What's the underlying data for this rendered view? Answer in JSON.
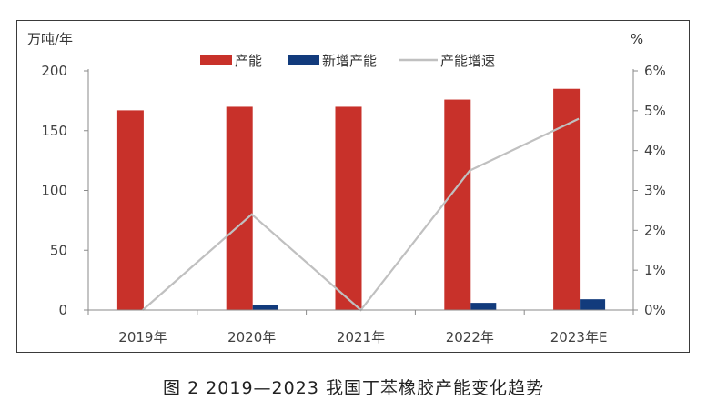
{
  "chart_data": {
    "type": "bar",
    "caption": "图 2  2019—2023 我国丁苯橡胶产能变化趋势",
    "left_unit": "万吨/年",
    "right_unit": "%",
    "categories": [
      "2019年",
      "2020年",
      "2021年",
      "2022年",
      "2023年E"
    ],
    "series": [
      {
        "name": "产能",
        "kind": "bar",
        "axis": "left",
        "color": "#c8312a",
        "values": [
          167,
          170,
          170,
          176,
          185
        ]
      },
      {
        "name": "新增产能",
        "kind": "bar",
        "axis": "left",
        "color": "#123b7c",
        "values": [
          0,
          4,
          0,
          6,
          9
        ]
      },
      {
        "name": "产能增速",
        "kind": "line",
        "axis": "right",
        "color": "#c0c0c0",
        "values": [
          0,
          2.4,
          0,
          3.5,
          4.8
        ]
      }
    ],
    "left_axis": {
      "min": 0,
      "max": 200,
      "ticks": [
        "0",
        "50",
        "100",
        "150",
        "200"
      ]
    },
    "right_axis": {
      "min": 0,
      "max": 6,
      "ticks": [
        "0%",
        "1%",
        "2%",
        "3%",
        "4%",
        "5%",
        "6%"
      ]
    },
    "legend_position": "top-center",
    "grid": false
  }
}
